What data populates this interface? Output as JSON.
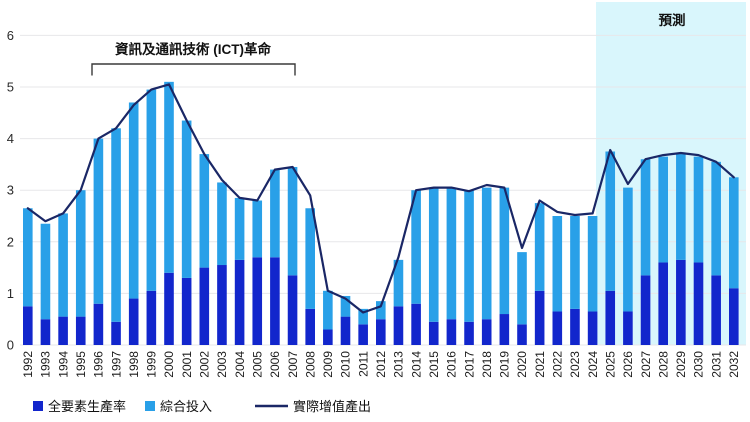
{
  "chart_data": {
    "type": "bar",
    "stacked": true,
    "line_overlay": true,
    "x": [
      "1992",
      "1993",
      "1994",
      "1995",
      "1996",
      "1997",
      "1998",
      "1999",
      "2000",
      "2001",
      "2002",
      "2003",
      "2004",
      "2005",
      "2006",
      "2007",
      "2008",
      "2009",
      "2010",
      "2011",
      "2012",
      "2013",
      "2014",
      "2015",
      "2016",
      "2017",
      "2018",
      "2019",
      "2020",
      "2021",
      "2022",
      "2023",
      "2024",
      "2025",
      "2026",
      "2027",
      "2028",
      "2029",
      "2030",
      "2031",
      "2032"
    ],
    "series": [
      {
        "name": "全要素生產率",
        "type": "bar",
        "color": "#1226cc",
        "values": [
          0.75,
          0.5,
          0.55,
          0.55,
          0.8,
          0.45,
          0.9,
          1.05,
          1.4,
          1.3,
          1.5,
          1.55,
          1.65,
          1.7,
          1.7,
          1.35,
          0.7,
          0.3,
          0.55,
          0.4,
          0.5,
          0.75,
          0.8,
          0.45,
          0.5,
          0.45,
          0.5,
          0.6,
          0.4,
          1.05,
          0.65,
          0.7,
          0.65,
          1.05,
          0.65,
          1.35,
          1.6,
          1.65,
          1.6,
          1.35,
          1.1
        ]
      },
      {
        "name": "綜合投入",
        "type": "bar",
        "color": "#29a0e8",
        "values": [
          1.9,
          1.85,
          2.0,
          2.45,
          3.2,
          3.75,
          3.8,
          3.9,
          3.7,
          3.05,
          2.2,
          1.6,
          1.2,
          1.1,
          1.7,
          2.1,
          1.95,
          0.75,
          0.4,
          0.3,
          0.35,
          0.9,
          2.2,
          2.6,
          2.55,
          2.55,
          2.55,
          2.45,
          1.4,
          1.7,
          1.85,
          1.8,
          1.85,
          2.7,
          2.4,
          2.25,
          2.05,
          2.05,
          2.05,
          2.2,
          2.15
        ]
      },
      {
        "name": "實際增值產出",
        "type": "line",
        "color": "#1a2766",
        "values": [
          2.65,
          2.4,
          2.55,
          3.0,
          4.0,
          4.2,
          4.65,
          4.95,
          5.05,
          4.35,
          3.7,
          3.2,
          2.85,
          2.8,
          3.4,
          3.45,
          2.9,
          1.05,
          0.9,
          0.63,
          0.75,
          1.7,
          3.0,
          3.05,
          3.05,
          2.98,
          3.1,
          3.05,
          1.88,
          2.8,
          2.58,
          2.52,
          2.55,
          3.78,
          3.12,
          3.6,
          3.68,
          3.72,
          3.68,
          3.55,
          3.25
        ]
      }
    ],
    "ylim": [
      0,
      6
    ],
    "yticks": [
      0,
      1,
      2,
      3,
      4,
      5,
      6
    ],
    "grid": true,
    "legend_position": "bottom",
    "annotations": {
      "bracket_label": "資訊及通訊技術 (ICT)革命",
      "bracket_start_year": "1996",
      "bracket_end_year": "2007",
      "forecast_label": "預測",
      "forecast_start_year": "2025"
    },
    "colors": {
      "forecast_band": "#d9f6fc",
      "gridline": "#e7e7ea",
      "text": "#111111"
    }
  }
}
